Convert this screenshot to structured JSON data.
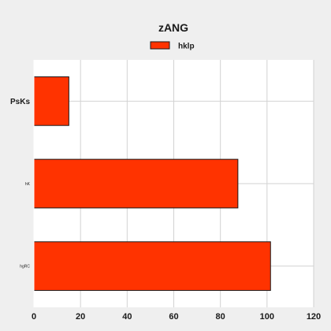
{
  "chart_data": {
    "type": "bar",
    "orientation": "horizontal",
    "title": "zANG",
    "xlabel": "",
    "ylabel": "",
    "categories": [
      "PsKs",
      "hK",
      "hgRC"
    ],
    "series": [
      {
        "name": "hklp",
        "values": [
          15,
          87.5,
          101.5
        ]
      }
    ],
    "xlim": [
      0,
      120
    ],
    "xticks": [
      0,
      20,
      40,
      60,
      80,
      100,
      120
    ],
    "grid": true,
    "legend_position": "top-center",
    "colors": {
      "bar_fill": "#ff3300",
      "bar_stroke": "#1a1a1a",
      "plot_background": "#ffffff",
      "page_background": "#efefef",
      "grid": "#d2d2d2"
    }
  }
}
